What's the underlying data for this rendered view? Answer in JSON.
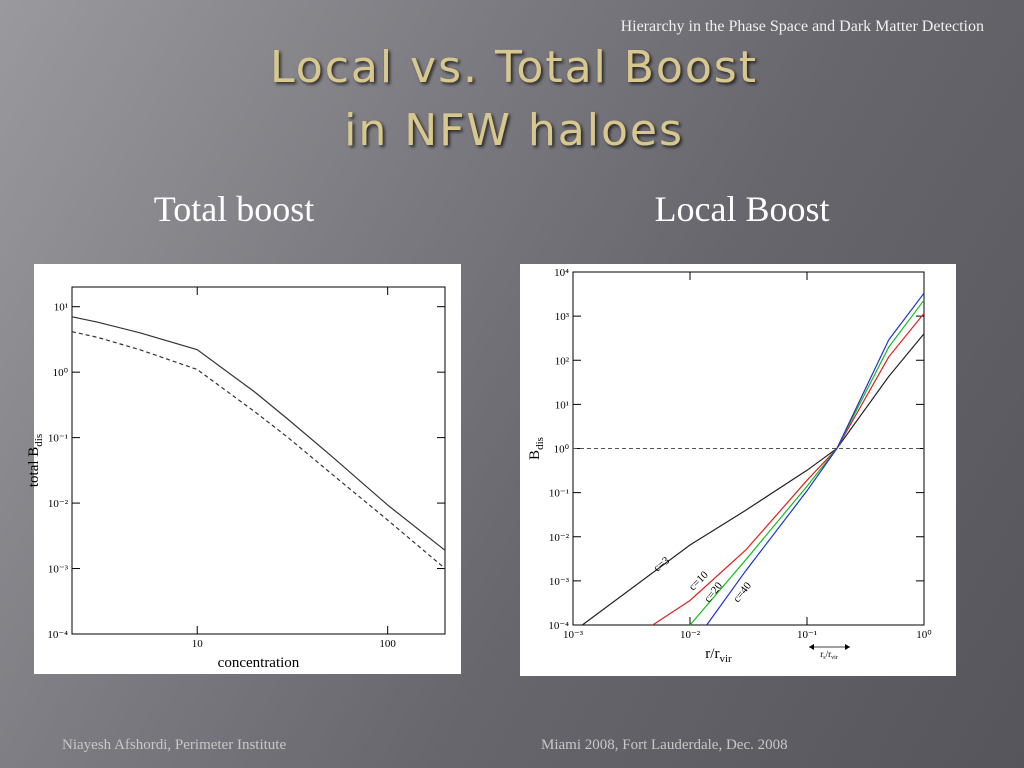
{
  "slide": {
    "header": "Hierarchy in the Phase Space and Dark Matter Detection",
    "title_lines": [
      "Local vs. Total Boost",
      "in NFW haloes"
    ],
    "footer_left": "Niayesh Afshordi, Perimeter Institute",
    "footer_right": "Miami 2008, Fort Lauderdale, Dec. 2008"
  },
  "chart_data": [
    {
      "type": "line",
      "title": "Total boost",
      "xlabel": "concentration",
      "ylabel": "total  B",
      "ylabel_subscript": "dis",
      "xscale": "log",
      "yscale": "log",
      "xlim": [
        2.2,
        200
      ],
      "ylim": [
        0.0001,
        20
      ],
      "xticks": [
        10,
        100
      ],
      "yticks": [
        {
          "value": 0.0001,
          "label": "10⁻⁴"
        },
        {
          "value": 0.001,
          "label": "10⁻³"
        },
        {
          "value": 0.01,
          "label": "10⁻²"
        },
        {
          "value": 0.1,
          "label": "10⁻¹"
        },
        {
          "value": 1,
          "label": "10⁰"
        },
        {
          "value": 10,
          "label": "10¹"
        }
      ],
      "series": [
        {
          "color": "#333333",
          "style": "solid",
          "x": [
            2.2,
            3,
            5,
            10,
            20,
            30,
            50,
            100,
            200
          ],
          "values": [
            7,
            5.8,
            4.0,
            2.2,
            0.5,
            0.19,
            0.054,
            0.0093,
            0.0019
          ]
        },
        {
          "color": "#333333",
          "style": "dashed",
          "x": [
            2.2,
            3,
            5,
            10,
            20,
            30,
            50,
            100,
            200
          ],
          "values": [
            4.15,
            3.4,
            2.2,
            1.1,
            0.25,
            0.1,
            0.029,
            0.0055,
            0.001
          ]
        }
      ]
    },
    {
      "type": "line",
      "title": "Local Boost",
      "xlabel": "r/r",
      "xlabel_subscript": "vir",
      "ylabel": "B",
      "ylabel_subscript": "dis",
      "annotation_parts": [
        "r",
        "s",
        "/r",
        "vir"
      ],
      "xscale": "log",
      "yscale": "log",
      "xlim": [
        0.001,
        1
      ],
      "ylim": [
        0.0001,
        10000
      ],
      "hline": 1,
      "xticks": [
        {
          "value": 0.001,
          "label": "10⁻³"
        },
        {
          "value": 0.01,
          "label": "10⁻²"
        },
        {
          "value": 0.1,
          "label": "10⁻¹"
        },
        {
          "value": 1,
          "label": "10⁰"
        }
      ],
      "yticks": [
        {
          "value": 0.0001,
          "label": "10⁻⁴"
        },
        {
          "value": 0.001,
          "label": "10⁻³"
        },
        {
          "value": 0.01,
          "label": "10⁻²"
        },
        {
          "value": 0.1,
          "label": "10⁻¹"
        },
        {
          "value": 1,
          "label": "10⁰"
        },
        {
          "value": 10,
          "label": "10¹"
        },
        {
          "value": 100,
          "label": "10²"
        },
        {
          "value": 1000,
          "label": "10³"
        },
        {
          "value": 10000,
          "label": "10⁴"
        }
      ],
      "series": [
        {
          "name": "c=3",
          "color": "#222222",
          "style": "solid",
          "x": [
            0.0012,
            0.01,
            0.03,
            0.1,
            0.18,
            0.5,
            1
          ],
          "values": [
            0.0001,
            0.0065,
            0.04,
            0.32,
            1,
            43,
            400
          ]
        },
        {
          "name": "c=10",
          "color": "#e02020",
          "style": "solid",
          "x": [
            0.0048,
            0.01,
            0.03,
            0.1,
            0.18,
            0.5,
            1
          ],
          "values": [
            0.0001,
            0.00036,
            0.005,
            0.19,
            1,
            120,
            1150
          ]
        },
        {
          "name": "c=20",
          "color": "#10c020",
          "style": "solid",
          "x": [
            0.01,
            0.03,
            0.1,
            0.18,
            0.5,
            1
          ],
          "values": [
            0.0001,
            0.003,
            0.14,
            1,
            200,
            2300
          ]
        },
        {
          "name": "c=40",
          "color": "#2030d0",
          "style": "solid",
          "x": [
            0.0139,
            0.03,
            0.1,
            0.18,
            0.5,
            1
          ],
          "values": [
            0.0001,
            0.0017,
            0.11,
            1,
            290,
            3300
          ]
        }
      ]
    }
  ]
}
